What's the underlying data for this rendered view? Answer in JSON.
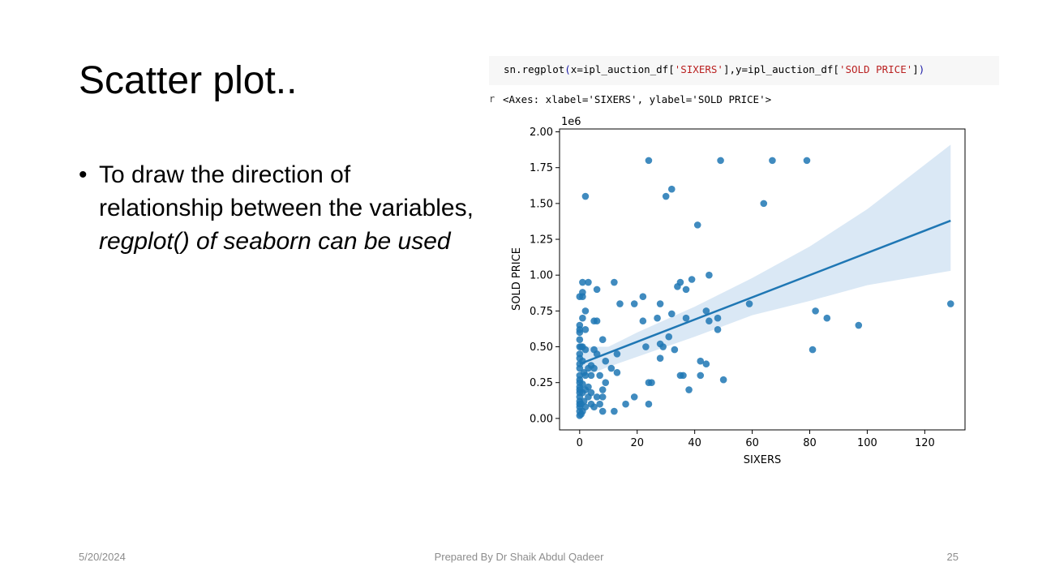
{
  "slide": {
    "title": "Scatter plot..",
    "bullet": {
      "marker": "•",
      "text_plain": "To draw the direction of relationship between the variables, ",
      "text_italic": "regplot() of seaborn can be used"
    }
  },
  "code_cell": {
    "fn": "sn.regplot",
    "open": "(",
    "x_arg": "x=ipl_auction_df[",
    "x_key": "'SIXERS'",
    "mid": "],y=ipl_auction_df[",
    "y_key": "'SOLD PRICE'",
    "close_bracket": "]",
    "close": ")"
  },
  "output": {
    "marker": "r",
    "text": "<Axes: xlabel='SIXERS', ylabel='SOLD PRICE'>"
  },
  "footer": {
    "date": "5/20/2024",
    "author": "Prepared By Dr Shaik Abdul Qadeer",
    "page": "25"
  },
  "colors": {
    "point": "#1f77b4",
    "line": "#1f77b4",
    "band": "#c6dbef"
  },
  "chart_data": {
    "type": "scatter",
    "xlabel": "SIXERS",
    "ylabel": "SOLD PRICE",
    "offset_label": "1e6",
    "xlim": [
      -7,
      134
    ],
    "ylim": [
      -0.08,
      2.02
    ],
    "xticks": [
      0,
      20,
      40,
      60,
      80,
      100,
      120
    ],
    "yticks": [
      "0.00",
      "0.25",
      "0.50",
      "0.75",
      "1.00",
      "1.25",
      "1.50",
      "1.75",
      "2.00"
    ],
    "grid": false,
    "regression": {
      "x": [
        0,
        129
      ],
      "y": [
        0.38,
        1.38
      ]
    },
    "band_upper": [
      [
        0,
        0.5
      ],
      [
        10,
        0.5
      ],
      [
        20,
        0.6
      ],
      [
        40,
        0.78
      ],
      [
        60,
        0.98
      ],
      [
        80,
        1.2
      ],
      [
        100,
        1.46
      ],
      [
        129,
        1.91
      ]
    ],
    "band_lower": [
      [
        0,
        0.28
      ],
      [
        10,
        0.36
      ],
      [
        20,
        0.43
      ],
      [
        40,
        0.57
      ],
      [
        60,
        0.72
      ],
      [
        80,
        0.82
      ],
      [
        100,
        0.93
      ],
      [
        129,
        1.03
      ]
    ],
    "points": [
      [
        0,
        0.02
      ],
      [
        0,
        0.05
      ],
      [
        0,
        0.08
      ],
      [
        0,
        0.1
      ],
      [
        0,
        0.12
      ],
      [
        0,
        0.15
      ],
      [
        0,
        0.18
      ],
      [
        0,
        0.2
      ],
      [
        0,
        0.22
      ],
      [
        0,
        0.25
      ],
      [
        0,
        0.27
      ],
      [
        0,
        0.3
      ],
      [
        0,
        0.35
      ],
      [
        0,
        0.38
      ],
      [
        0,
        0.42
      ],
      [
        0,
        0.45
      ],
      [
        0,
        0.5
      ],
      [
        0,
        0.55
      ],
      [
        0,
        0.6
      ],
      [
        0,
        0.62
      ],
      [
        0,
        0.65
      ],
      [
        0,
        0.85
      ],
      [
        0.5,
        0.03
      ],
      [
        0.5,
        0.1
      ],
      [
        0.5,
        0.5
      ],
      [
        1,
        0.05
      ],
      [
        1,
        0.18
      ],
      [
        1,
        0.24
      ],
      [
        1,
        0.4
      ],
      [
        1,
        0.7
      ],
      [
        1,
        0.88
      ],
      [
        1,
        0.95
      ],
      [
        1,
        0.85
      ],
      [
        1,
        0.5
      ],
      [
        1.5,
        0.12
      ],
      [
        1.5,
        0.32
      ],
      [
        2,
        0.08
      ],
      [
        2,
        0.2
      ],
      [
        2,
        0.3
      ],
      [
        2,
        0.62
      ],
      [
        2,
        0.75
      ],
      [
        2,
        1.55
      ],
      [
        2,
        0.48
      ],
      [
        3,
        0.15
      ],
      [
        3,
        0.22
      ],
      [
        3,
        0.35
      ],
      [
        3,
        0.95
      ],
      [
        4,
        0.1
      ],
      [
        4,
        0.18
      ],
      [
        4,
        0.3
      ],
      [
        4,
        0.37
      ],
      [
        5,
        0.08
      ],
      [
        5,
        0.48
      ],
      [
        5,
        0.68
      ],
      [
        5,
        0.35
      ],
      [
        6,
        0.15
      ],
      [
        6,
        0.45
      ],
      [
        6,
        0.9
      ],
      [
        6,
        0.68
      ],
      [
        7,
        0.1
      ],
      [
        7,
        0.3
      ],
      [
        8,
        0.05
      ],
      [
        8,
        0.15
      ],
      [
        8,
        0.2
      ],
      [
        8,
        0.55
      ],
      [
        9,
        0.25
      ],
      [
        9,
        0.4
      ],
      [
        11,
        0.35
      ],
      [
        12,
        0.05
      ],
      [
        12,
        0.95
      ],
      [
        13,
        0.45
      ],
      [
        13,
        0.32
      ],
      [
        14,
        0.8
      ],
      [
        16,
        0.1
      ],
      [
        19,
        0.15
      ],
      [
        19,
        0.8
      ],
      [
        22,
        0.85
      ],
      [
        22,
        0.68
      ],
      [
        23,
        0.5
      ],
      [
        24,
        0.1
      ],
      [
        24,
        0.25
      ],
      [
        24,
        1.8
      ],
      [
        25,
        0.25
      ],
      [
        27,
        0.7
      ],
      [
        28,
        0.42
      ],
      [
        28,
        0.52
      ],
      [
        28,
        0.8
      ],
      [
        29,
        0.5
      ],
      [
        30,
        1.55
      ],
      [
        31,
        0.57
      ],
      [
        32,
        0.73
      ],
      [
        32,
        1.6
      ],
      [
        33,
        0.48
      ],
      [
        34,
        0.92
      ],
      [
        35,
        0.3
      ],
      [
        35,
        0.95
      ],
      [
        36,
        0.3
      ],
      [
        37,
        0.7
      ],
      [
        37,
        0.9
      ],
      [
        38,
        0.2
      ],
      [
        39,
        0.97
      ],
      [
        41,
        1.35
      ],
      [
        42,
        0.3
      ],
      [
        42,
        0.4
      ],
      [
        44,
        0.38
      ],
      [
        44,
        0.75
      ],
      [
        45,
        0.68
      ],
      [
        45,
        1.0
      ],
      [
        48,
        0.62
      ],
      [
        48,
        0.7
      ],
      [
        49,
        1.8
      ],
      [
        50,
        0.27
      ],
      [
        59,
        0.8
      ],
      [
        64,
        1.5
      ],
      [
        67,
        1.8
      ],
      [
        79,
        1.8
      ],
      [
        81,
        0.48
      ],
      [
        82,
        0.75
      ],
      [
        86,
        0.7
      ],
      [
        97,
        0.65
      ],
      [
        129,
        0.8
      ]
    ]
  }
}
